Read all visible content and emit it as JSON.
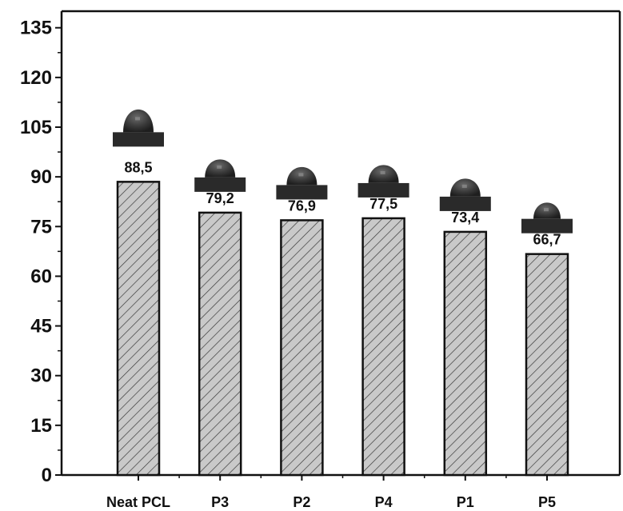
{
  "chart_data": {
    "type": "bar",
    "categories": [
      "Neat PCL",
      "P3",
      "P2",
      "P4",
      "P1",
      "P5"
    ],
    "values": [
      88.5,
      79.2,
      76.9,
      77.5,
      73.4,
      66.7
    ],
    "value_labels": [
      "88,5",
      "79,2",
      "76,9",
      "77,5",
      "73,4",
      "66,7"
    ],
    "title": "",
    "xlabel": "",
    "ylabel": "",
    "ylim": [
      0,
      140
    ],
    "yticks": [
      0,
      15,
      30,
      45,
      60,
      75,
      90,
      105,
      120,
      135
    ],
    "grid": false,
    "bar_fill": "#c8c8c8",
    "bar_pattern": "diagonal-hatch",
    "droplet_images": [
      "droplet-icon",
      "droplet-icon",
      "droplet-icon",
      "droplet-icon",
      "droplet-icon",
      "droplet-icon"
    ]
  }
}
